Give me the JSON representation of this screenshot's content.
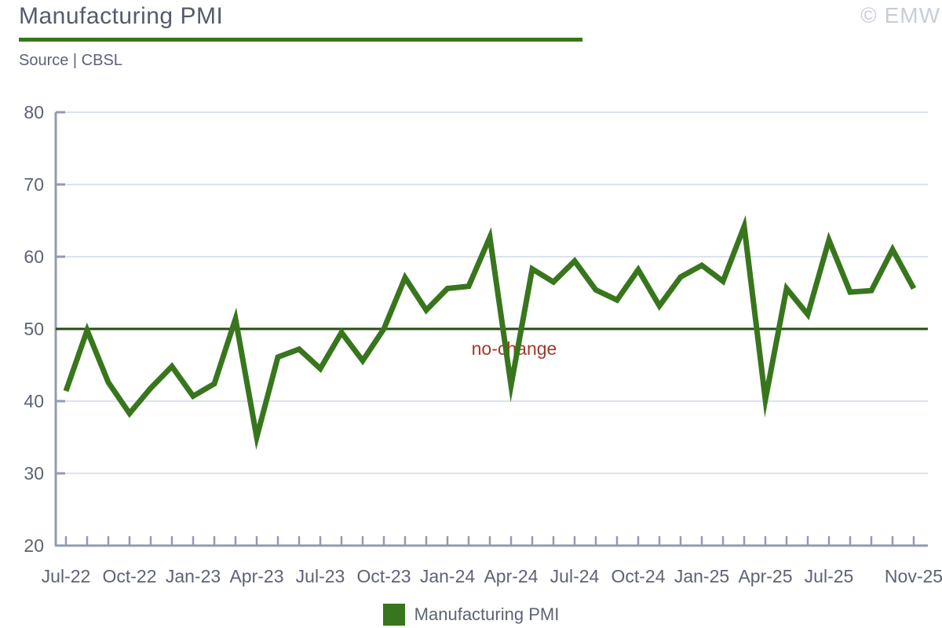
{
  "header": {
    "title": "Manufacturing PMI",
    "source": "Source | CBSL",
    "watermark": "© EMW"
  },
  "colors": {
    "series_green": "#38761d",
    "no_change_line": "#274e13",
    "no_change_text": "#a0392e",
    "axis_text": "#5c6374",
    "axis_line": "#929cb0",
    "gridline": "#dce3ef",
    "title_text": "#545b6a",
    "watermark_text": "#c8cdd8"
  },
  "chart_data": {
    "type": "line",
    "title": "Manufacturing PMI",
    "x": [
      "Jul-22",
      "Aug-22",
      "Sep-22",
      "Oct-22",
      "Nov-22",
      "Dec-22",
      "Jan-23",
      "Feb-23",
      "Mar-23",
      "Apr-23",
      "May-23",
      "Jun-23",
      "Jul-23",
      "Aug-23",
      "Sep-23",
      "Oct-23",
      "Nov-23",
      "Dec-23",
      "Jan-24",
      "Feb-24",
      "Mar-24",
      "Apr-24",
      "May-24",
      "Jun-24",
      "Jul-24",
      "Aug-24",
      "Sep-24",
      "Oct-24",
      "Nov-24",
      "Dec-24",
      "Jan-25",
      "Feb-25",
      "Mar-25",
      "Apr-25",
      "May-25",
      "Jun-25",
      "Jul-25",
      "Aug-25",
      "Sep-25",
      "Oct-25",
      "Nov-25"
    ],
    "series": [
      {
        "name": "Manufacturing PMI",
        "color": "#38761d",
        "values": [
          41.4,
          49.8,
          42.6,
          38.3,
          41.8,
          44.8,
          40.7,
          42.4,
          51.4,
          35.0,
          46.1,
          47.2,
          44.5,
          49.5,
          45.6,
          50.0,
          57.1,
          52.6,
          55.6,
          55.9,
          62.7,
          42.2,
          58.3,
          56.5,
          59.4,
          55.4,
          54.0,
          58.2,
          53.2,
          57.2,
          58.8,
          56.6,
          64.2,
          40.2,
          55.6,
          52.0,
          62.3,
          55.1,
          55.3,
          61.0,
          55.6
        ]
      }
    ],
    "x_tick_labels": [
      "Jul-22",
      "Oct-22",
      "Jan-23",
      "Apr-23",
      "Jul-23",
      "Oct-23",
      "Jan-24",
      "Apr-24",
      "Jul-24",
      "Oct-24",
      "Jan-25",
      "Apr-25",
      "Jul-25",
      "Nov-25"
    ],
    "y_ticks": [
      20,
      30,
      40,
      50,
      60,
      70,
      80
    ],
    "ylim": [
      20,
      80
    ],
    "grid": "horizontal",
    "reference_line": {
      "value": 50,
      "label": "no-change"
    },
    "legend": {
      "label": "Manufacturing PMI",
      "position": "bottom"
    }
  }
}
